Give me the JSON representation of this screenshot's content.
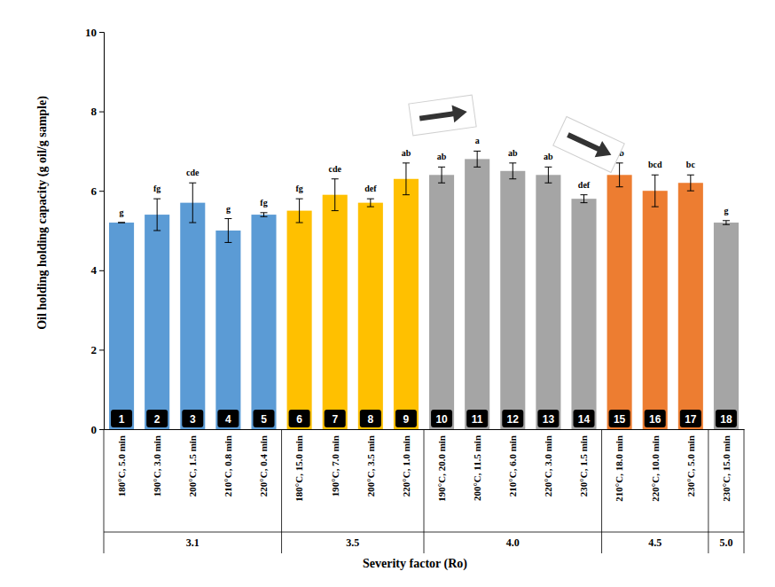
{
  "chart_data": {
    "type": "bar",
    "x_label": "Severity factor (Ro)",
    "y_label": "Oil holding holding capacity (g oil/g sample)",
    "categories": [
      "180°C, 5.0 min",
      "190°C, 3.0 min",
      "200°C, 1.5 min",
      "210°C, 0.8 min",
      "220°C, 0.4 min",
      "180°C, 15.0 min",
      "190°C, 7.0 min",
      "200°C, 3.5 min",
      "220°C, 1.0 min",
      "190°C, 20.0 min",
      "200°C, 11.5 min",
      "210°C, 6.0 min",
      "220°C, 3.0 min",
      "230°C, 1.5 min",
      "210°C, 18.0 min",
      "220°C, 10.0 min",
      "230°C, 5.0 min",
      "230°C, 15.0 min"
    ],
    "values": [
      5.2,
      5.4,
      5.7,
      5.0,
      5.4,
      5.5,
      5.9,
      5.7,
      6.3,
      6.4,
      6.8,
      6.5,
      6.4,
      5.8,
      6.4,
      6.0,
      6.2,
      5.2
    ],
    "errors": [
      0.0,
      0.4,
      0.5,
      0.3,
      0.05,
      0.3,
      0.4,
      0.1,
      0.4,
      0.2,
      0.2,
      0.2,
      0.2,
      0.1,
      0.3,
      0.4,
      0.2,
      0.05
    ],
    "significance_letters": [
      "g",
      "fg",
      "cde",
      "g",
      "fg",
      "fg",
      "cde",
      "def",
      "ab",
      "ab",
      "a",
      "ab",
      "ab",
      "def",
      "ab",
      "bcd",
      "bc",
      "g"
    ],
    "bar_ids": [
      "1",
      "2",
      "3",
      "4",
      "5",
      "6",
      "7",
      "8",
      "9",
      "10",
      "11",
      "12",
      "13",
      "14",
      "15",
      "16",
      "17",
      "18"
    ],
    "colors": [
      "#5b9bd5",
      "#5b9bd5",
      "#5b9bd5",
      "#5b9bd5",
      "#5b9bd5",
      "#ffc000",
      "#ffc000",
      "#ffc000",
      "#ffc000",
      "#a5a5a5",
      "#a5a5a5",
      "#a5a5a5",
      "#a5a5a5",
      "#a5a5a5",
      "#ed7d31",
      "#ed7d31",
      "#ed7d31",
      "#a5a5a5"
    ],
    "groups": [
      {
        "label": "3.1",
        "count": 5
      },
      {
        "label": "3.5",
        "count": 4
      },
      {
        "label": "4.0",
        "count": 5
      },
      {
        "label": "4.5",
        "count": 3
      },
      {
        "label": "5.0",
        "count": 1
      }
    ],
    "ylim": [
      0,
      10
    ],
    "yticks": [
      0,
      2,
      4,
      6,
      8,
      10
    ],
    "grid": false
  }
}
